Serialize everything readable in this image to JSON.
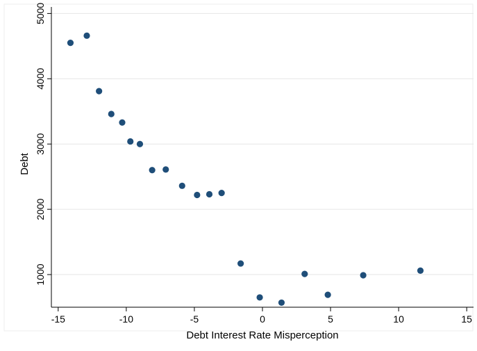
{
  "chart_data": {
    "type": "scatter",
    "xlabel": "Debt Interest Rate Misperception",
    "ylabel": "Debt",
    "xlim": [
      -15.5,
      15.5
    ],
    "ylim": [
      500,
      5100
    ],
    "x_ticks": [
      -15,
      -10,
      -5,
      0,
      5,
      10,
      15
    ],
    "y_ticks": [
      1000,
      2000,
      3000,
      4000,
      5000
    ],
    "x_tick_labels": [
      "-15",
      "-10",
      "-5",
      "0",
      "5",
      "10",
      "15"
    ],
    "y_tick_labels": [
      "1000",
      "2000",
      "3000",
      "4000",
      "5000"
    ],
    "grid": "horizontal",
    "colors": {
      "marker": "#1f4e79",
      "grid": "#e6e6e6",
      "axis": "#000000",
      "frame": "#eeeeee"
    },
    "points": [
      {
        "x": -14.1,
        "y": 4550
      },
      {
        "x": -12.9,
        "y": 4660
      },
      {
        "x": -12.0,
        "y": 3810
      },
      {
        "x": -11.1,
        "y": 3460
      },
      {
        "x": -10.3,
        "y": 3330
      },
      {
        "x": -9.7,
        "y": 3040
      },
      {
        "x": -9.0,
        "y": 3000
      },
      {
        "x": -8.1,
        "y": 2600
      },
      {
        "x": -7.1,
        "y": 2610
      },
      {
        "x": -5.9,
        "y": 2360
      },
      {
        "x": -4.8,
        "y": 2220
      },
      {
        "x": -3.9,
        "y": 2230
      },
      {
        "x": -3.0,
        "y": 2250
      },
      {
        "x": -1.6,
        "y": 1170
      },
      {
        "x": -0.2,
        "y": 650
      },
      {
        "x": 1.4,
        "y": 570
      },
      {
        "x": 3.1,
        "y": 1010
      },
      {
        "x": 4.8,
        "y": 690
      },
      {
        "x": 7.4,
        "y": 990
      },
      {
        "x": 11.6,
        "y": 1060
      }
    ]
  }
}
